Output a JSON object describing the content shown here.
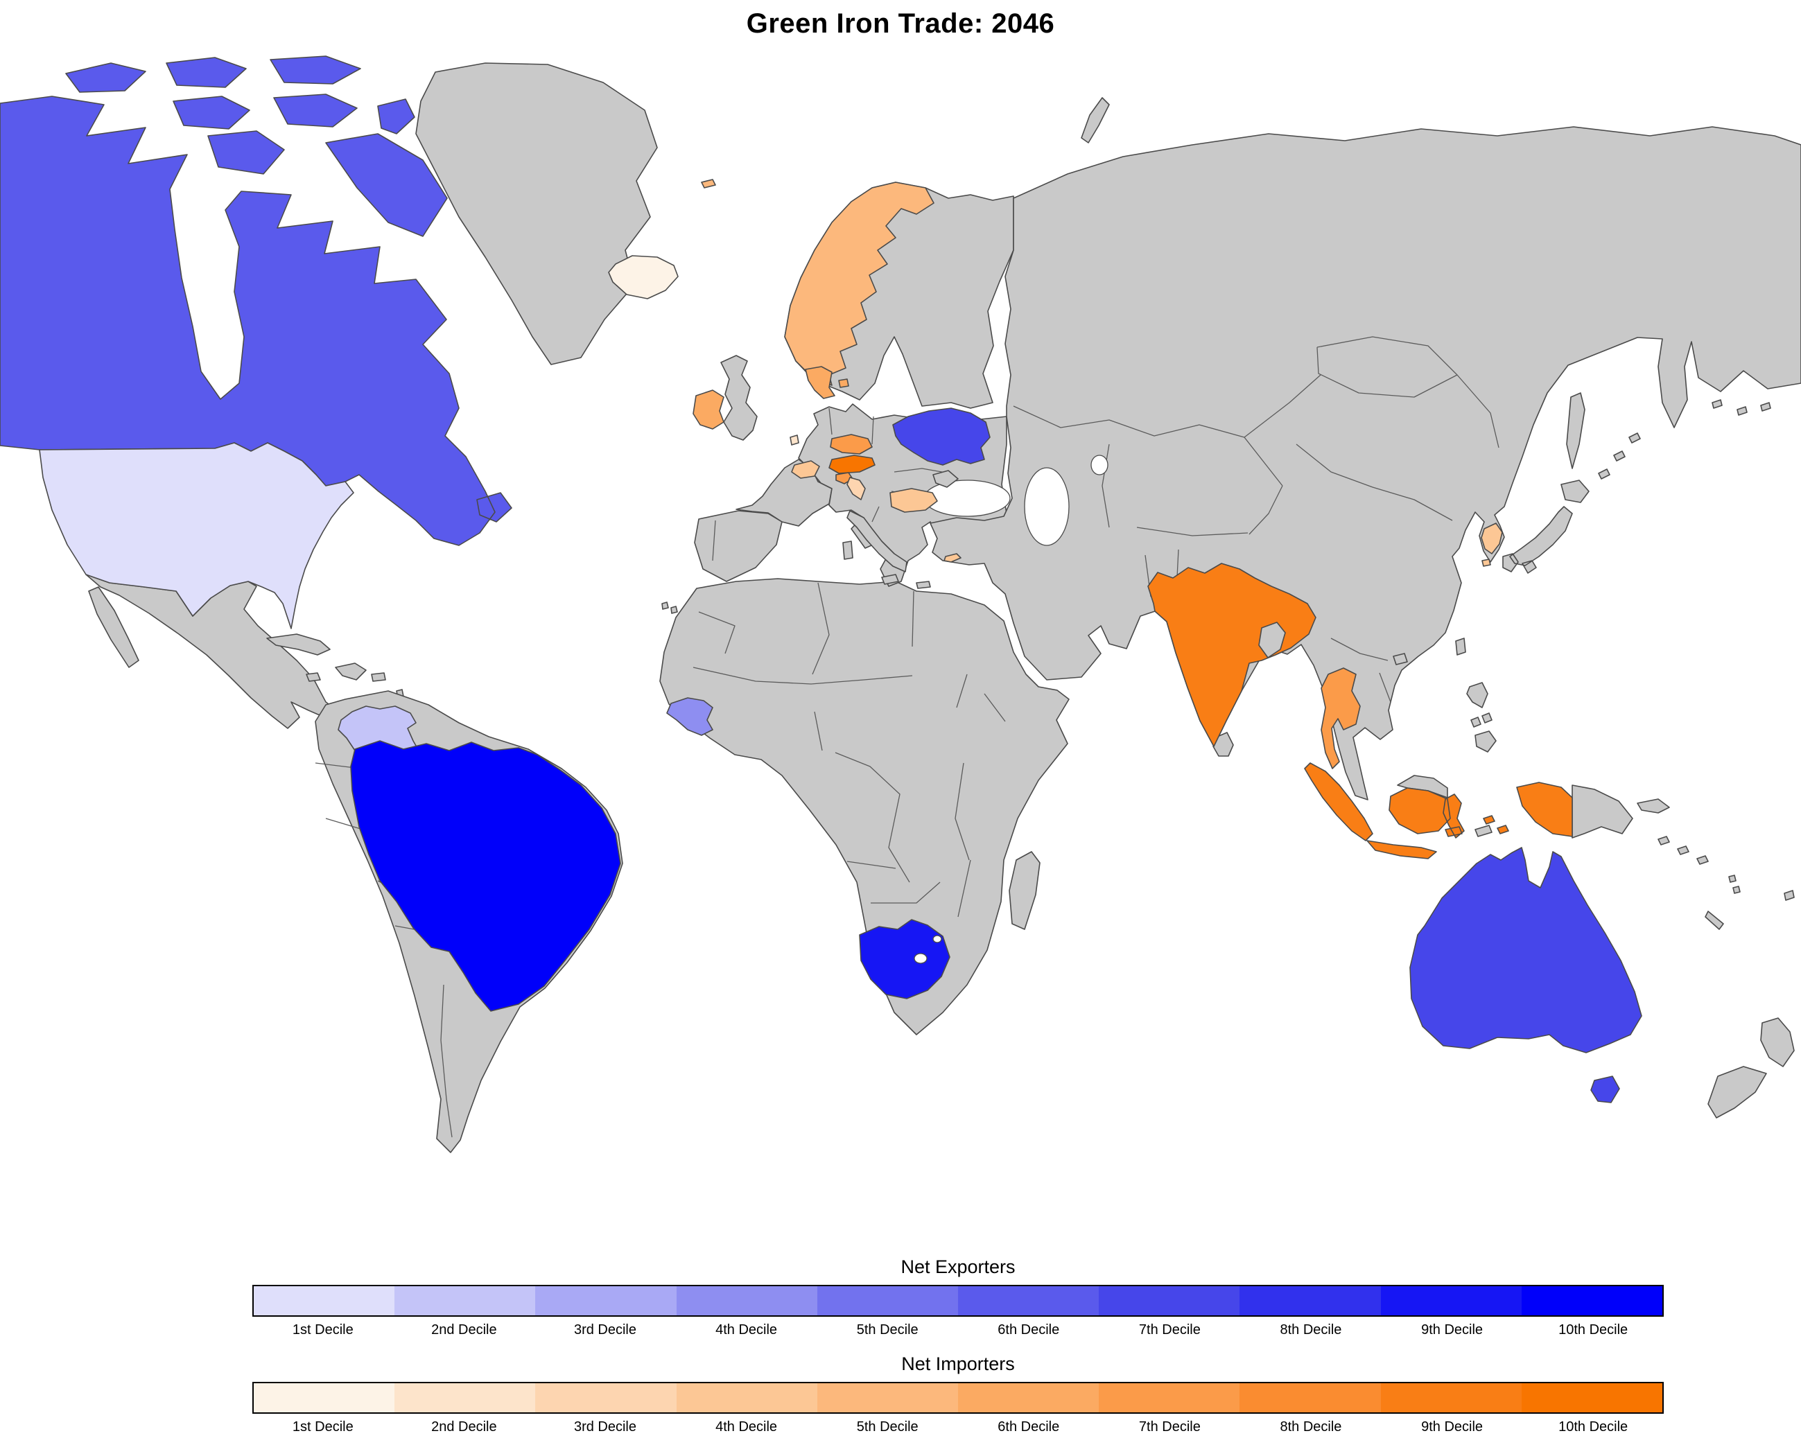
{
  "title": "Green Iron Trade: 2046",
  "palette": {
    "no_data": "#c9c9c9",
    "ocean": "#ffffff",
    "border": "#4a4a4a",
    "legend_border": "#000000"
  },
  "legend": {
    "exporters": {
      "title": "Net Exporters",
      "labels": [
        "1st Decile",
        "2nd Decile",
        "3rd Decile",
        "4th Decile",
        "5th Decile",
        "6th Decile",
        "7th Decile",
        "8th Decile",
        "9th Decile",
        "10th Decile"
      ],
      "colors": [
        "#dfdffb",
        "#c4c4f8",
        "#a9a9f5",
        "#8e8ef1",
        "#7272ee",
        "#5a5aec",
        "#4646ea",
        "#3131ed",
        "#1616f4",
        "#0000fa"
      ]
    },
    "importers": {
      "title": "Net Importers",
      "labels": [
        "1st Decile",
        "2nd Decile",
        "3rd Decile",
        "4th Decile",
        "5th Decile",
        "6th Decile",
        "7th Decile",
        "8th Decile",
        "9th Decile",
        "10th Decile"
      ],
      "colors": [
        "#fdf3e7",
        "#fde4cb",
        "#fdd5b0",
        "#fcc795",
        "#fcb87c",
        "#fbaa62",
        "#fb9b49",
        "#fa8c30",
        "#f97e15",
        "#f87500"
      ]
    }
  },
  "map": {
    "countries": [
      {
        "id": "united-states",
        "name": "United States",
        "group": "exporter",
        "decile": 1
      },
      {
        "id": "venezuela",
        "name": "Venezuela",
        "group": "exporter",
        "decile": 2
      },
      {
        "id": "guinea",
        "name": "Guinea",
        "group": "exporter",
        "decile": 4
      },
      {
        "id": "canada",
        "name": "Canada",
        "group": "exporter",
        "decile": 6
      },
      {
        "id": "ukraine",
        "name": "Ukraine",
        "group": "exporter",
        "decile": 7
      },
      {
        "id": "australia",
        "name": "Australia",
        "group": "exporter",
        "decile": 7
      },
      {
        "id": "south-africa",
        "name": "South Africa",
        "group": "exporter",
        "decile": 9
      },
      {
        "id": "brazil",
        "name": "Brazil",
        "group": "exporter",
        "decile": 10
      },
      {
        "id": "iceland",
        "name": "Iceland",
        "group": "importer",
        "decile": 1
      },
      {
        "id": "luxembourg",
        "name": "Luxembourg",
        "group": "importer",
        "decile": 2
      },
      {
        "id": "croatia",
        "name": "Croatia",
        "group": "importer",
        "decile": 3
      },
      {
        "id": "cyprus",
        "name": "Cyprus",
        "group": "importer",
        "decile": 4
      },
      {
        "id": "bulgaria",
        "name": "Bulgaria",
        "group": "importer",
        "decile": 4
      },
      {
        "id": "switzerland",
        "name": "Switzerland",
        "group": "importer",
        "decile": 4
      },
      {
        "id": "south-korea",
        "name": "South Korea",
        "group": "importer",
        "decile": 4
      },
      {
        "id": "norway",
        "name": "Norway",
        "group": "importer",
        "decile": 5
      },
      {
        "id": "denmark",
        "name": "Denmark",
        "group": "importer",
        "decile": 6
      },
      {
        "id": "ireland",
        "name": "Ireland",
        "group": "importer",
        "decile": 6
      },
      {
        "id": "czechia",
        "name": "Czechia",
        "group": "importer",
        "decile": 7
      },
      {
        "id": "slovenia",
        "name": "Slovenia",
        "group": "importer",
        "decile": 7
      },
      {
        "id": "thailand",
        "name": "Thailand",
        "group": "importer",
        "decile": 7
      },
      {
        "id": "india",
        "name": "India",
        "group": "importer",
        "decile": 9
      },
      {
        "id": "indonesia",
        "name": "Indonesia",
        "group": "importer",
        "decile": 9
      },
      {
        "id": "austria",
        "name": "Austria",
        "group": "importer",
        "decile": 10
      }
    ]
  },
  "chart_data": {
    "type": "choropleth",
    "title": "Green Iron Trade: 2046",
    "unit": "decile",
    "decile_labels": [
      "1st Decile",
      "2nd Decile",
      "3rd Decile",
      "4th Decile",
      "5th Decile",
      "6th Decile",
      "7th Decile",
      "8th Decile",
      "9th Decile",
      "10th Decile"
    ],
    "series": [
      {
        "name": "Net Exporters",
        "scale": "blue",
        "countries": {
          "United States": 1,
          "Venezuela": 2,
          "Guinea": 4,
          "Canada": 6,
          "Ukraine": 7,
          "Australia": 7,
          "South Africa": 9,
          "Brazil": 10
        }
      },
      {
        "name": "Net Importers",
        "scale": "orange",
        "countries": {
          "Iceland": 1,
          "Luxembourg": 2,
          "Croatia": 3,
          "Cyprus": 4,
          "Bulgaria": 4,
          "Switzerland": 4,
          "South Korea": 4,
          "Norway": 5,
          "Denmark": 6,
          "Ireland": 6,
          "Czechia": 7,
          "Slovenia": 7,
          "Thailand": 7,
          "India": 9,
          "Indonesia": 9,
          "Austria": 10
        }
      }
    ],
    "legend_position": "bottom"
  }
}
